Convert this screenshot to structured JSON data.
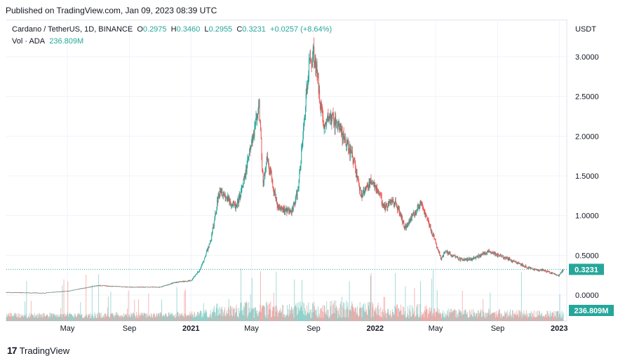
{
  "header": {
    "published": "Published on TradingView.com, Jan 09, 2023 08:39 UTC"
  },
  "legend": {
    "symbol": "Cardano / TetherUS, 1D, BINANCE",
    "o_label": "O",
    "o": "0.2975",
    "h_label": "H",
    "h": "0.3460",
    "l_label": "L",
    "l": "0.2955",
    "c_label": "C",
    "c": "0.3231",
    "change": "+0.0257 (+8.64%)",
    "vol_label": "Vol · ADA",
    "vol": "236.809M"
  },
  "axis": {
    "unit": "USDT"
  },
  "footer": {
    "brand": "TradingView"
  },
  "colors": {
    "up": "#26a69a",
    "down": "#ef5350",
    "price_line": "#26a69a",
    "grid": "#f0f3fa"
  },
  "chart_data": {
    "type": "candlestick",
    "y_ticks": [
      "3.0000",
      "2.5000",
      "2.0000",
      "1.5000",
      "1.0000",
      "0.5000",
      "0.0000"
    ],
    "y_tick_values": [
      3.0,
      2.5,
      2.0,
      1.5,
      1.0,
      0.5,
      0.0
    ],
    "ylim": [
      -0.15,
      3.1
    ],
    "x_ticks": [
      "May",
      "Sep",
      "2021",
      "May",
      "Sep",
      "2022",
      "May",
      "Sep",
      "2023"
    ],
    "x_tick_dates": [
      "2020-05-01",
      "2020-09-01",
      "2021-01-01",
      "2021-05-01",
      "2021-09-01",
      "2022-01-01",
      "2022-05-01",
      "2022-09-01",
      "2023-01-01"
    ],
    "x_range": [
      "2020-01-01",
      "2023-01-09"
    ],
    "last_price": 0.3231,
    "last_price_label": "0.3231",
    "last_volume_label": "236.809M",
    "price_path": [
      [
        "2020-01-01",
        0.033
      ],
      [
        "2020-03-13",
        0.025
      ],
      [
        "2020-05-01",
        0.05
      ],
      [
        "2020-07-01",
        0.12
      ],
      [
        "2020-09-01",
        0.1
      ],
      [
        "2020-11-01",
        0.1
      ],
      [
        "2020-12-01",
        0.16
      ],
      [
        "2021-01-01",
        0.18
      ],
      [
        "2021-01-20",
        0.33
      ],
      [
        "2021-02-10",
        0.7
      ],
      [
        "2021-02-27",
        1.35
      ],
      [
        "2021-03-15",
        1.2
      ],
      [
        "2021-04-01",
        1.1
      ],
      [
        "2021-04-15",
        1.4
      ],
      [
        "2021-05-16",
        2.4
      ],
      [
        "2021-05-24",
        1.4
      ],
      [
        "2021-06-01",
        1.7
      ],
      [
        "2021-06-22",
        1.1
      ],
      [
        "2021-07-20",
        1.05
      ],
      [
        "2021-08-01",
        1.3
      ],
      [
        "2021-08-23",
        2.9
      ],
      [
        "2021-09-02",
        3.05
      ],
      [
        "2021-09-22",
        2.1
      ],
      [
        "2021-10-01",
        2.25
      ],
      [
        "2021-10-20",
        2.15
      ],
      [
        "2021-11-01",
        1.95
      ],
      [
        "2021-11-20",
        1.7
      ],
      [
        "2021-12-04",
        1.25
      ],
      [
        "2021-12-27",
        1.45
      ],
      [
        "2022-01-21",
        1.1
      ],
      [
        "2022-02-05",
        1.2
      ],
      [
        "2022-02-15",
        1.1
      ],
      [
        "2022-03-01",
        0.85
      ],
      [
        "2022-04-01",
        1.15
      ],
      [
        "2022-04-15",
        0.95
      ],
      [
        "2022-05-12",
        0.45
      ],
      [
        "2022-05-20",
        0.55
      ],
      [
        "2022-06-18",
        0.45
      ],
      [
        "2022-07-10",
        0.45
      ],
      [
        "2022-08-14",
        0.55
      ],
      [
        "2022-09-10",
        0.48
      ],
      [
        "2022-10-01",
        0.43
      ],
      [
        "2022-11-09",
        0.32
      ],
      [
        "2022-12-01",
        0.31
      ],
      [
        "2022-12-31",
        0.245
      ],
      [
        "2023-01-09",
        0.3231
      ]
    ]
  }
}
